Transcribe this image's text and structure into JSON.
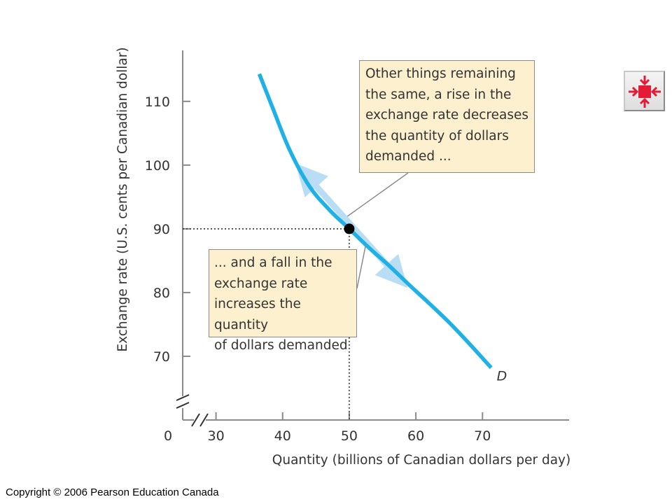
{
  "chart_data": {
    "type": "line",
    "title": "",
    "xlabel": "Quantity (billions of Canadian dollars per day)",
    "ylabel": "Exchange rate (U.S. cents per Canadian dollar)",
    "x_ticks": [
      0,
      30,
      40,
      50,
      60,
      70
    ],
    "y_ticks": [
      70,
      80,
      90,
      100,
      110
    ],
    "x_tick_labels": [
      "0",
      "30",
      "40",
      "50",
      "60",
      "70"
    ],
    "y_tick_labels": [
      "70",
      "80",
      "90",
      "100",
      "110"
    ],
    "xlim": [
      25,
      83
    ],
    "ylim": [
      60,
      118
    ],
    "axis_breaks": [
      "x",
      "y"
    ],
    "grid": false,
    "series": [
      {
        "name": "D",
        "color": "#1fb1e6",
        "x": [
          36.5,
          38.5,
          41,
          44,
          47,
          50,
          53,
          56,
          59,
          62,
          65,
          68,
          71.3
        ],
        "y": [
          114.3,
          109,
          102.5,
          96.7,
          93,
          90,
          87,
          84.2,
          81.2,
          78.3,
          75.3,
          72,
          68.2
        ]
      }
    ],
    "highlight_point": {
      "x": 50,
      "y": 90
    },
    "annotations": [
      {
        "id": "top",
        "text": "Other things remaining\nthe same, a rise in the\nexchange rate decreases\nthe quantity of dollars\ndemanded ..."
      },
      {
        "id": "bottom",
        "text": "... and a fall in the\nexchange rate\nincreases the quantity\nof dollars demanded"
      }
    ],
    "movement_arrows": {
      "from": {
        "x": 43.2,
        "y": 98.8
      },
      "to": {
        "x": 57.5,
        "y": 82.2
      },
      "color": "#b9ddf4"
    }
  },
  "nav_button": {
    "icon": "collapse-arrows-icon",
    "color": "#e31b36"
  },
  "copyright": "Copyright © 2006 Pearson Education Canada"
}
